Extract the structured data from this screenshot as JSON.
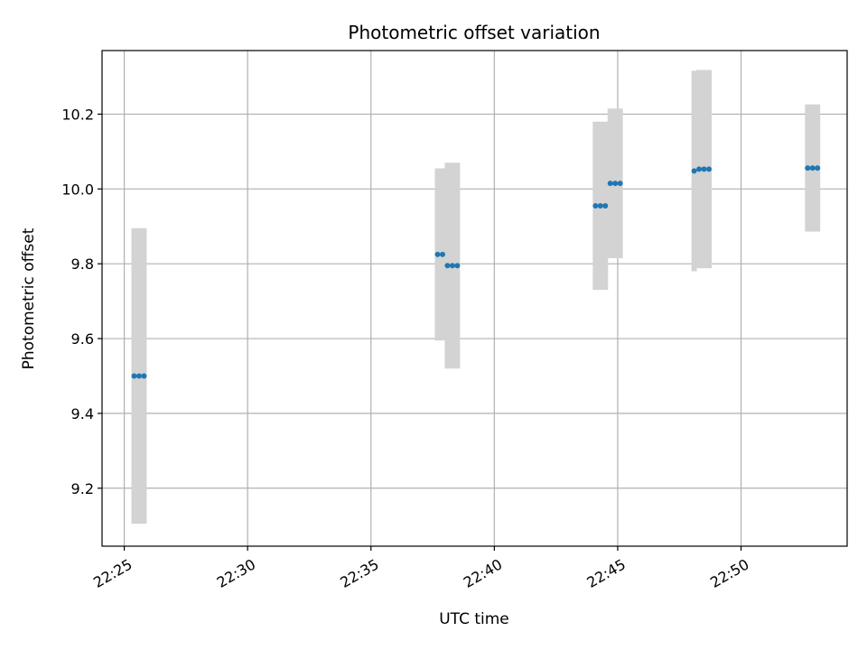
{
  "chart_data": {
    "type": "scatter",
    "title": "Photometric offset variation",
    "xlabel": "UTC time",
    "ylabel": "Photometric offset",
    "x_tick_labels": [
      "22:25",
      "22:30",
      "22:35",
      "22:40",
      "22:45",
      "22:50"
    ],
    "y_tick_labels": [
      "9.2",
      "9.4",
      "9.6",
      "9.8",
      "10.0",
      "10.2"
    ],
    "y_ticks": [
      9.2,
      9.4,
      9.6,
      9.8,
      10.0,
      10.2
    ],
    "xlim": [
      "22:24:06",
      "22:54:18"
    ],
    "ylim": [
      9.045,
      10.37
    ],
    "grid": true,
    "marker_color": "#1f77b4",
    "errorbar_color": "#d3d3d3",
    "points": [
      {
        "x": "22:25:24",
        "y": 9.5,
        "err": 0.395
      },
      {
        "x": "22:25:36",
        "y": 9.5,
        "err": 0.395
      },
      {
        "x": "22:25:48",
        "y": 9.5,
        "err": 0.395
      },
      {
        "x": "22:37:42",
        "y": 9.825,
        "err": 0.23
      },
      {
        "x": "22:37:54",
        "y": 9.825,
        "err": 0.23
      },
      {
        "x": "22:38:06",
        "y": 9.795,
        "err": 0.275
      },
      {
        "x": "22:38:18",
        "y": 9.795,
        "err": 0.275
      },
      {
        "x": "22:38:30",
        "y": 9.795,
        "err": 0.275
      },
      {
        "x": "22:44:06",
        "y": 9.955,
        "err": 0.225
      },
      {
        "x": "22:44:18",
        "y": 9.955,
        "err": 0.225
      },
      {
        "x": "22:44:30",
        "y": 9.955,
        "err": 0.225
      },
      {
        "x": "22:44:42",
        "y": 10.015,
        "err": 0.2
      },
      {
        "x": "22:44:54",
        "y": 10.015,
        "err": 0.2
      },
      {
        "x": "22:45:06",
        "y": 10.015,
        "err": 0.2
      },
      {
        "x": "22:48:06",
        "y": 10.048,
        "err": 0.268
      },
      {
        "x": "22:48:18",
        "y": 10.053,
        "err": 0.265
      },
      {
        "x": "22:48:30",
        "y": 10.053,
        "err": 0.265
      },
      {
        "x": "22:48:42",
        "y": 10.053,
        "err": 0.265
      },
      {
        "x": "22:52:42",
        "y": 10.056,
        "err": 0.17
      },
      {
        "x": "22:52:54",
        "y": 10.056,
        "err": 0.17
      },
      {
        "x": "22:53:06",
        "y": 10.056,
        "err": 0.17
      }
    ]
  }
}
